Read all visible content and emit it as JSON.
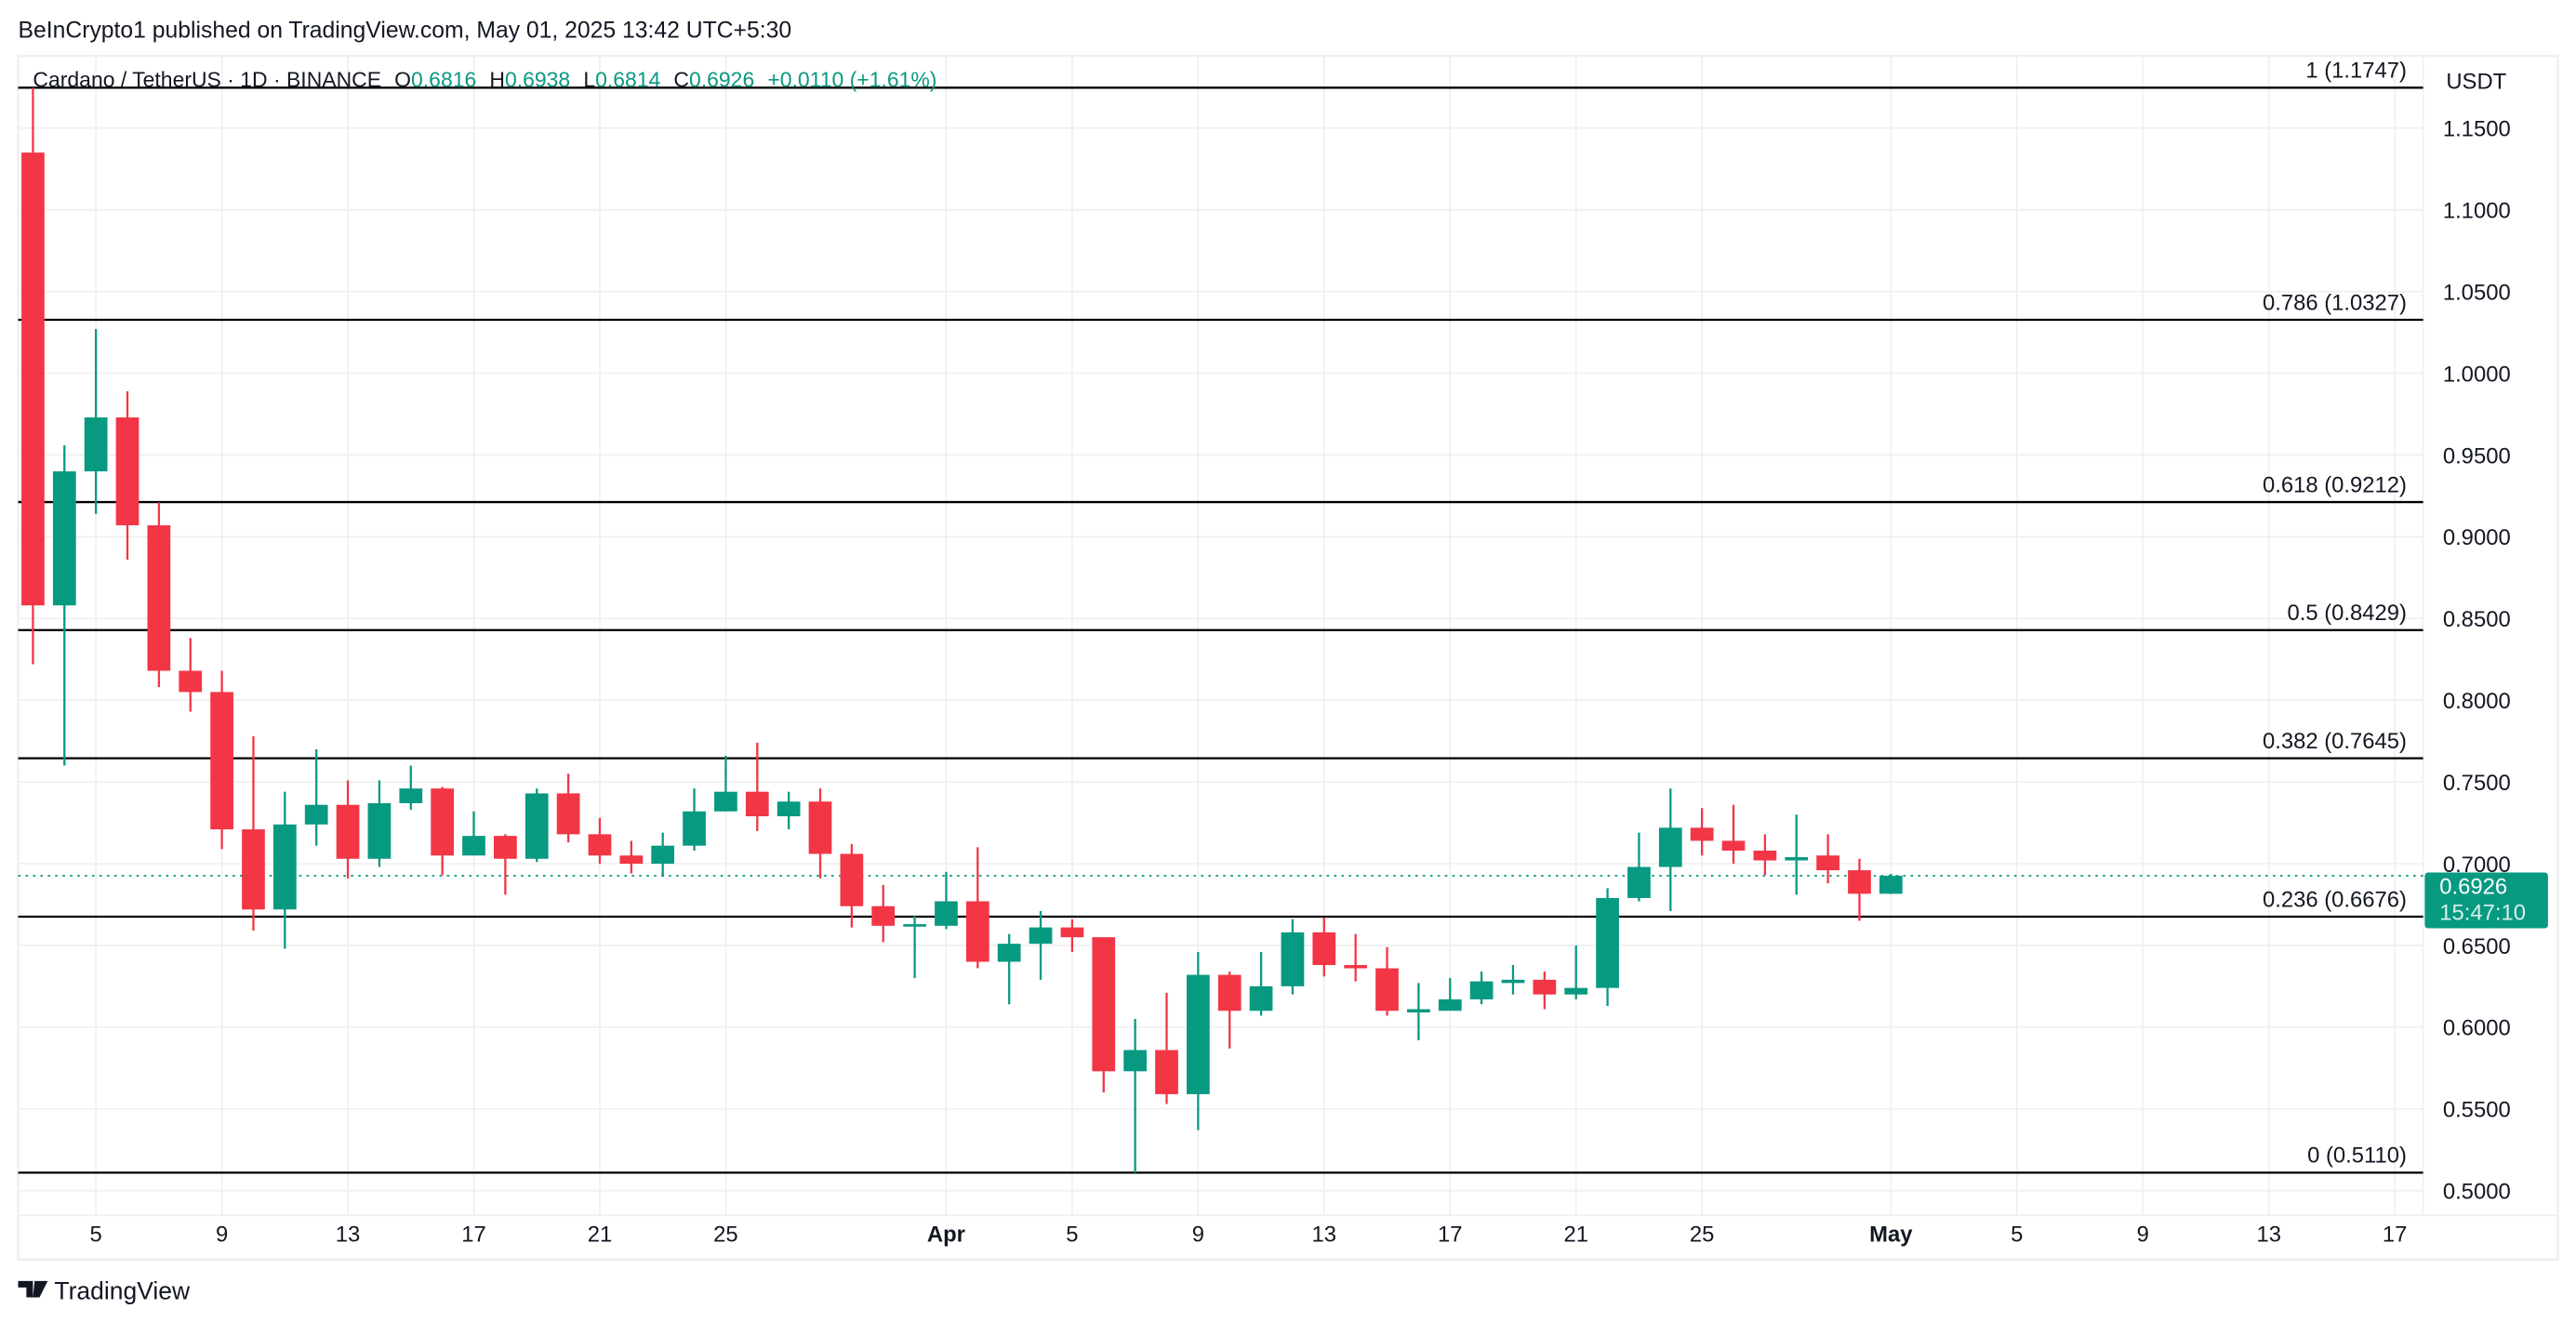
{
  "header": {
    "published": "BeInCrypto1 published on TradingView.com, May 01, 2025 13:42 UTC+5:30"
  },
  "legend": {
    "symbol": "Cardano / TetherUS · 1D · BINANCE",
    "o_label": "O",
    "o": "0.6816",
    "h_label": "H",
    "h": "0.6938",
    "l_label": "L",
    "l": "0.6814",
    "c_label": "C",
    "c": "0.6926",
    "change": "+0.0110 (+1.61%)"
  },
  "price_axis": {
    "currency": "USDT",
    "last_price": "0.6926",
    "countdown": "15:47:10"
  },
  "footer": {
    "logo_text": "TradingView"
  },
  "colors": {
    "up": "#089981",
    "down": "#f23645",
    "fib_line": "#000000",
    "grid": "#f0f0f0"
  },
  "chart_data": {
    "type": "candlestick",
    "title": "Cardano / TetherUS · 1D · BINANCE",
    "ylabel": "USDT",
    "ylim": [
      0.485,
      1.19
    ],
    "grid": true,
    "y_ticks": [
      "0.5000",
      "0.5500",
      "0.6000",
      "0.6500",
      "0.7000",
      "0.7500",
      "0.8000",
      "0.8500",
      "0.9000",
      "0.9500",
      "1.0000",
      "1.0500",
      "1.1000",
      "1.1500"
    ],
    "x_ticks": [
      {
        "label": "5",
        "date": "2025-03-05"
      },
      {
        "label": "9",
        "date": "2025-03-09"
      },
      {
        "label": "13",
        "date": "2025-03-13"
      },
      {
        "label": "17",
        "date": "2025-03-17"
      },
      {
        "label": "21",
        "date": "2025-03-21"
      },
      {
        "label": "25",
        "date": "2025-03-25"
      },
      {
        "label": "Apr",
        "date": "2025-04-01",
        "bold": true
      },
      {
        "label": "5",
        "date": "2025-04-05"
      },
      {
        "label": "9",
        "date": "2025-04-09"
      },
      {
        "label": "13",
        "date": "2025-04-13"
      },
      {
        "label": "17",
        "date": "2025-04-17"
      },
      {
        "label": "21",
        "date": "2025-04-21"
      },
      {
        "label": "25",
        "date": "2025-04-25"
      },
      {
        "label": "May",
        "date": "2025-05-01",
        "bold": true
      },
      {
        "label": "5",
        "date": "2025-05-05"
      },
      {
        "label": "9",
        "date": "2025-05-09"
      },
      {
        "label": "13",
        "date": "2025-05-13"
      },
      {
        "label": "17",
        "date": "2025-05-17"
      }
    ],
    "fib_levels": [
      {
        "label": "1 (1.1747)",
        "price": 1.1747
      },
      {
        "label": "0.786 (1.0327)",
        "price": 1.0327
      },
      {
        "label": "0.618 (0.9212)",
        "price": 0.9212
      },
      {
        "label": "0.5 (0.8429)",
        "price": 0.8429
      },
      {
        "label": "0.382 (0.7645)",
        "price": 0.7645
      },
      {
        "label": "0.236 (0.6676)",
        "price": 0.6676
      },
      {
        "label": "0 (0.5110)",
        "price": 0.511
      }
    ],
    "candles": [
      {
        "date": "2025-03-03",
        "o": 1.135,
        "h": 1.1747,
        "l": 0.822,
        "c": 0.858
      },
      {
        "date": "2025-03-04",
        "o": 0.858,
        "h": 0.956,
        "l": 0.76,
        "c": 0.94
      },
      {
        "date": "2025-03-05",
        "o": 0.94,
        "h": 1.027,
        "l": 0.914,
        "c": 0.973
      },
      {
        "date": "2025-03-06",
        "o": 0.973,
        "h": 0.989,
        "l": 0.886,
        "c": 0.907
      },
      {
        "date": "2025-03-07",
        "o": 0.907,
        "h": 0.921,
        "l": 0.808,
        "c": 0.818
      },
      {
        "date": "2025-03-08",
        "o": 0.818,
        "h": 0.838,
        "l": 0.793,
        "c": 0.805
      },
      {
        "date": "2025-03-09",
        "o": 0.805,
        "h": 0.818,
        "l": 0.709,
        "c": 0.721
      },
      {
        "date": "2025-03-10",
        "o": 0.721,
        "h": 0.778,
        "l": 0.659,
        "c": 0.672
      },
      {
        "date": "2025-03-11",
        "o": 0.672,
        "h": 0.744,
        "l": 0.648,
        "c": 0.724
      },
      {
        "date": "2025-03-12",
        "o": 0.724,
        "h": 0.77,
        "l": 0.711,
        "c": 0.736
      },
      {
        "date": "2025-03-13",
        "o": 0.736,
        "h": 0.751,
        "l": 0.691,
        "c": 0.703
      },
      {
        "date": "2025-03-14",
        "o": 0.703,
        "h": 0.751,
        "l": 0.698,
        "c": 0.737
      },
      {
        "date": "2025-03-15",
        "o": 0.737,
        "h": 0.76,
        "l": 0.733,
        "c": 0.746
      },
      {
        "date": "2025-03-16",
        "o": 0.746,
        "h": 0.747,
        "l": 0.693,
        "c": 0.705
      },
      {
        "date": "2025-03-17",
        "o": 0.705,
        "h": 0.732,
        "l": 0.705,
        "c": 0.717
      },
      {
        "date": "2025-03-18",
        "o": 0.717,
        "h": 0.718,
        "l": 0.681,
        "c": 0.703
      },
      {
        "date": "2025-03-19",
        "o": 0.703,
        "h": 0.746,
        "l": 0.701,
        "c": 0.743
      },
      {
        "date": "2025-03-20",
        "o": 0.743,
        "h": 0.755,
        "l": 0.713,
        "c": 0.718
      },
      {
        "date": "2025-03-21",
        "o": 0.718,
        "h": 0.728,
        "l": 0.7,
        "c": 0.705
      },
      {
        "date": "2025-03-22",
        "o": 0.705,
        "h": 0.714,
        "l": 0.694,
        "c": 0.7
      },
      {
        "date": "2025-03-23",
        "o": 0.7,
        "h": 0.719,
        "l": 0.692,
        "c": 0.711
      },
      {
        "date": "2025-03-24",
        "o": 0.711,
        "h": 0.746,
        "l": 0.708,
        "c": 0.732
      },
      {
        "date": "2025-03-25",
        "o": 0.732,
        "h": 0.766,
        "l": 0.732,
        "c": 0.744
      },
      {
        "date": "2025-03-26",
        "o": 0.744,
        "h": 0.774,
        "l": 0.72,
        "c": 0.729
      },
      {
        "date": "2025-03-27",
        "o": 0.729,
        "h": 0.744,
        "l": 0.721,
        "c": 0.738
      },
      {
        "date": "2025-03-28",
        "o": 0.738,
        "h": 0.746,
        "l": 0.691,
        "c": 0.706
      },
      {
        "date": "2025-03-29",
        "o": 0.706,
        "h": 0.712,
        "l": 0.661,
        "c": 0.674
      },
      {
        "date": "2025-03-30",
        "o": 0.674,
        "h": 0.687,
        "l": 0.652,
        "c": 0.662
      },
      {
        "date": "2025-03-31",
        "o": 0.662,
        "h": 0.668,
        "l": 0.63,
        "c": 0.663
      },
      {
        "date": "2025-04-01",
        "o": 0.662,
        "h": 0.695,
        "l": 0.66,
        "c": 0.677
      },
      {
        "date": "2025-04-02",
        "o": 0.677,
        "h": 0.71,
        "l": 0.636,
        "c": 0.64
      },
      {
        "date": "2025-04-03",
        "o": 0.64,
        "h": 0.657,
        "l": 0.614,
        "c": 0.651
      },
      {
        "date": "2025-04-04",
        "o": 0.651,
        "h": 0.671,
        "l": 0.629,
        "c": 0.661
      },
      {
        "date": "2025-04-05",
        "o": 0.661,
        "h": 0.666,
        "l": 0.646,
        "c": 0.655
      },
      {
        "date": "2025-04-06",
        "o": 0.655,
        "h": 0.655,
        "l": 0.56,
        "c": 0.573
      },
      {
        "date": "2025-04-07",
        "o": 0.573,
        "h": 0.605,
        "l": 0.511,
        "c": 0.586
      },
      {
        "date": "2025-04-08",
        "o": 0.586,
        "h": 0.621,
        "l": 0.553,
        "c": 0.559
      },
      {
        "date": "2025-04-09",
        "o": 0.559,
        "h": 0.646,
        "l": 0.537,
        "c": 0.632
      },
      {
        "date": "2025-04-10",
        "o": 0.632,
        "h": 0.634,
        "l": 0.587,
        "c": 0.61
      },
      {
        "date": "2025-04-11",
        "o": 0.61,
        "h": 0.646,
        "l": 0.607,
        "c": 0.625
      },
      {
        "date": "2025-04-12",
        "o": 0.625,
        "h": 0.666,
        "l": 0.62,
        "c": 0.658
      },
      {
        "date": "2025-04-13",
        "o": 0.658,
        "h": 0.667,
        "l": 0.631,
        "c": 0.638
      },
      {
        "date": "2025-04-14",
        "o": 0.638,
        "h": 0.657,
        "l": 0.628,
        "c": 0.636
      },
      {
        "date": "2025-04-15",
        "o": 0.636,
        "h": 0.649,
        "l": 0.607,
        "c": 0.61
      },
      {
        "date": "2025-04-16",
        "o": 0.609,
        "h": 0.627,
        "l": 0.592,
        "c": 0.611
      },
      {
        "date": "2025-04-17",
        "o": 0.61,
        "h": 0.63,
        "l": 0.611,
        "c": 0.617
      },
      {
        "date": "2025-04-18",
        "o": 0.617,
        "h": 0.634,
        "l": 0.614,
        "c": 0.628
      },
      {
        "date": "2025-04-19",
        "o": 0.627,
        "h": 0.638,
        "l": 0.62,
        "c": 0.629
      },
      {
        "date": "2025-04-20",
        "o": 0.629,
        "h": 0.634,
        "l": 0.611,
        "c": 0.62
      },
      {
        "date": "2025-04-21",
        "o": 0.62,
        "h": 0.65,
        "l": 0.617,
        "c": 0.624
      },
      {
        "date": "2025-04-22",
        "o": 0.624,
        "h": 0.685,
        "l": 0.613,
        "c": 0.679
      },
      {
        "date": "2025-04-23",
        "o": 0.679,
        "h": 0.719,
        "l": 0.677,
        "c": 0.698
      },
      {
        "date": "2025-04-24",
        "o": 0.698,
        "h": 0.746,
        "l": 0.671,
        "c": 0.722
      },
      {
        "date": "2025-04-25",
        "o": 0.722,
        "h": 0.734,
        "l": 0.705,
        "c": 0.714
      },
      {
        "date": "2025-04-26",
        "o": 0.714,
        "h": 0.736,
        "l": 0.7,
        "c": 0.708
      },
      {
        "date": "2025-04-27",
        "o": 0.708,
        "h": 0.718,
        "l": 0.693,
        "c": 0.702
      },
      {
        "date": "2025-04-28",
        "o": 0.702,
        "h": 0.73,
        "l": 0.681,
        "c": 0.704
      },
      {
        "date": "2025-04-29",
        "o": 0.705,
        "h": 0.718,
        "l": 0.688,
        "c": 0.696
      },
      {
        "date": "2025-04-30",
        "o": 0.696,
        "h": 0.703,
        "l": 0.665,
        "c": 0.6816
      },
      {
        "date": "2025-05-01",
        "o": 0.6816,
        "h": 0.6938,
        "l": 0.6814,
        "c": 0.6926
      }
    ],
    "last_price": 0.6926
  }
}
